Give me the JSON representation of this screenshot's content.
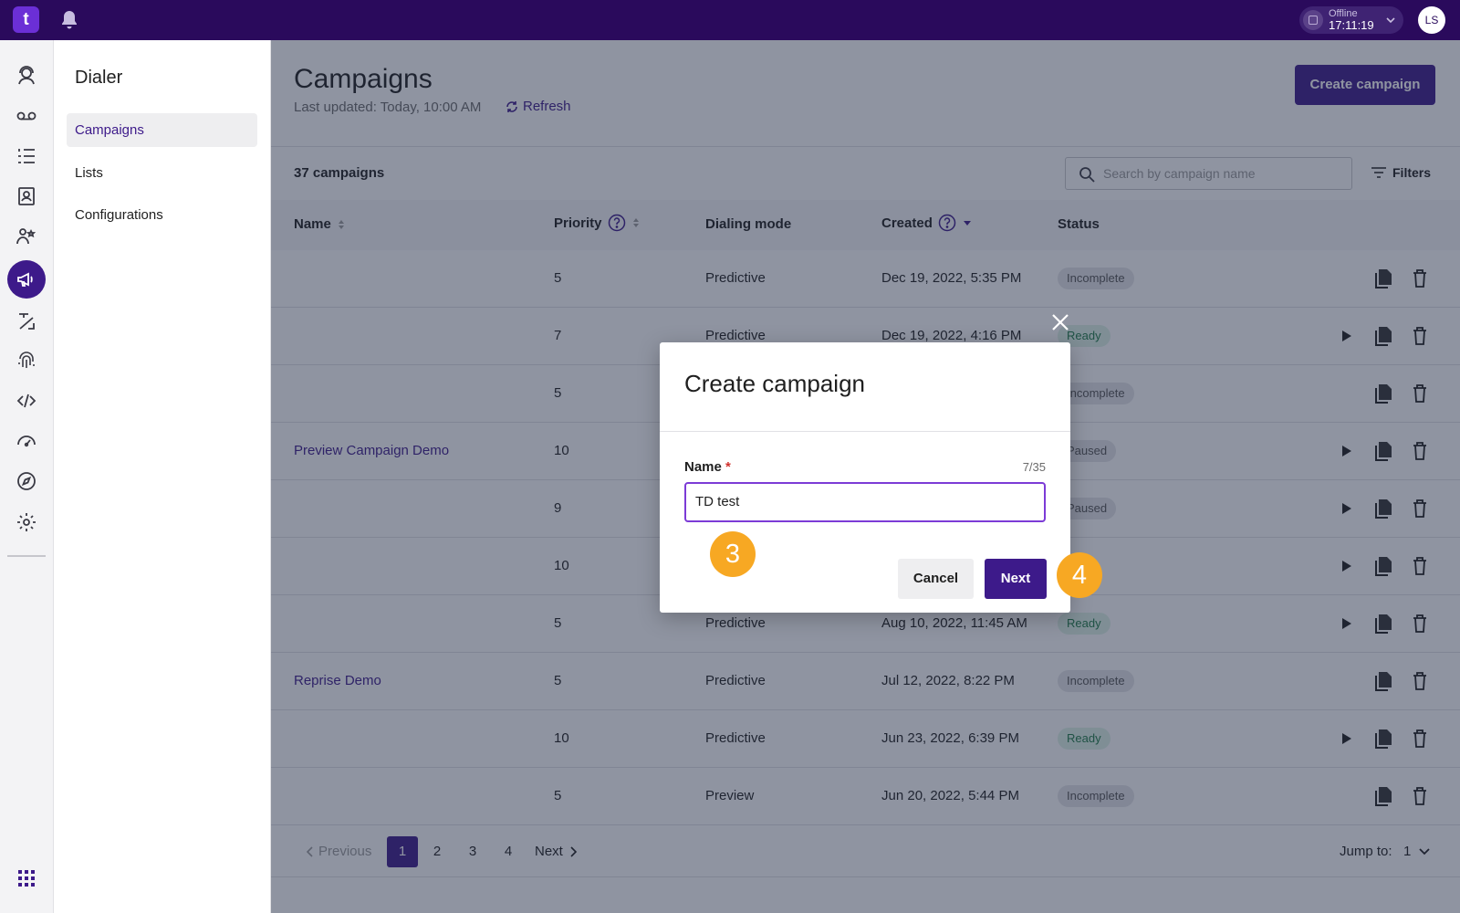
{
  "topbar": {
    "logo_text": "t",
    "status_label": "Offline",
    "status_time": "17:11:19",
    "avatar_initials": "LS"
  },
  "rail": {
    "icons": [
      "agent-icon",
      "voicemail-icon",
      "list-icon",
      "contacts-icon",
      "teams-icon",
      "megaphone-icon",
      "routing-icon",
      "fingerprint-icon",
      "code-icon",
      "dashboard-icon",
      "compass-icon",
      "settings-icon",
      "apps-grid-icon"
    ],
    "active": "megaphone-icon"
  },
  "subnav": {
    "title": "Dialer",
    "items": [
      {
        "label": "Campaigns",
        "active": true
      },
      {
        "label": "Lists",
        "active": false
      },
      {
        "label": "Configurations",
        "active": false
      }
    ]
  },
  "header": {
    "title": "Campaigns",
    "last_updated": "Last updated: Today, 10:00 AM",
    "refresh_label": "Refresh",
    "create_label": "Create campaign"
  },
  "toolbar": {
    "count": "37 campaigns",
    "search_placeholder": "Search by campaign name",
    "filters_label": "Filters"
  },
  "table": {
    "columns": [
      "Name",
      "Priority",
      "Dialing mode",
      "Created",
      "Status"
    ],
    "rows": [
      {
        "name": "",
        "priority": "5",
        "mode": "Predictive",
        "created": "Dec 19, 2022, 5:35 PM",
        "status": "Incomplete",
        "status_type": "incomplete",
        "playable": false
      },
      {
        "name": "",
        "priority": "7",
        "mode": "Predictive",
        "created": "Dec 19, 2022, 4:16 PM",
        "status": "Ready",
        "status_type": "ready",
        "playable": true
      },
      {
        "name": "",
        "priority": "5",
        "mode": "",
        "created": "",
        "status": "Incomplete",
        "status_type": "incomplete",
        "playable": false
      },
      {
        "name": "Preview Campaign Demo",
        "priority": "10",
        "mode": "",
        "created": "",
        "status": "Paused",
        "status_type": "paused",
        "playable": true
      },
      {
        "name": "",
        "priority": "9",
        "mode": "",
        "created": "",
        "status": "Paused",
        "status_type": "paused",
        "playable": true
      },
      {
        "name": "",
        "priority": "10",
        "mode": "",
        "created": "",
        "status": "d",
        "status_type": "paused",
        "playable": true
      },
      {
        "name": "",
        "priority": "5",
        "mode": "Predictive",
        "created": "Aug 10, 2022, 11:45 AM",
        "status": "Ready",
        "status_type": "ready",
        "playable": true
      },
      {
        "name": "Reprise Demo",
        "priority": "5",
        "mode": "Predictive",
        "created": "Jul 12, 2022, 8:22 PM",
        "status": "Incomplete",
        "status_type": "incomplete",
        "playable": false
      },
      {
        "name": "",
        "priority": "10",
        "mode": "Predictive",
        "created": "Jun 23, 2022, 6:39 PM",
        "status": "Ready",
        "status_type": "ready",
        "playable": true
      },
      {
        "name": "",
        "priority": "5",
        "mode": "Preview",
        "created": "Jun 20, 2022, 5:44 PM",
        "status": "Incomplete",
        "status_type": "incomplete",
        "playable": false
      }
    ]
  },
  "pagination": {
    "previous_label": "Previous",
    "next_label": "Next",
    "pages": [
      "1",
      "2",
      "3",
      "4"
    ],
    "current": "1",
    "jump_label": "Jump to:",
    "jump_value": "1"
  },
  "modal": {
    "title": "Create campaign",
    "field_label": "Name",
    "required_mark": "*",
    "char_count": "7/35",
    "field_value": "TD test",
    "cancel_label": "Cancel",
    "next_label": "Next"
  },
  "annotations": {
    "step_3": "3",
    "step_4": "4"
  },
  "colors": {
    "brand": "#2a0a5c",
    "accent": "#3d1a8a",
    "step_marker": "#f7a823",
    "input_focus": "#7c3bd6"
  }
}
